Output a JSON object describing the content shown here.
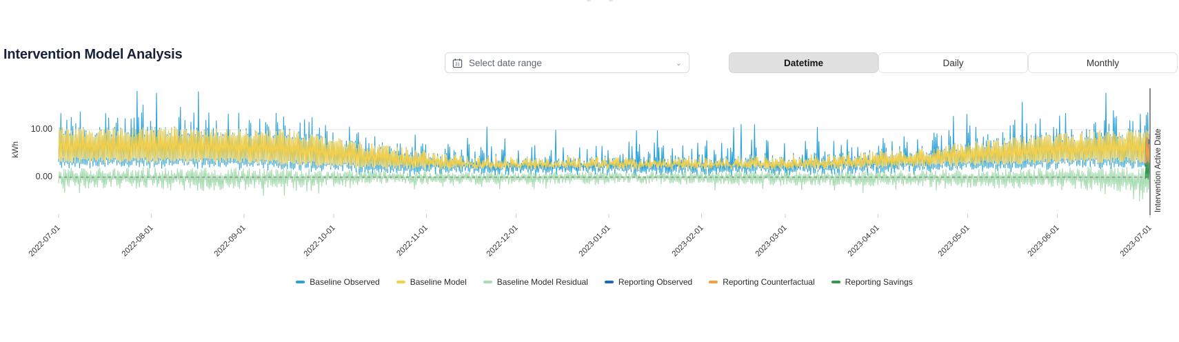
{
  "header": {
    "title": "Intervention Model Analysis"
  },
  "controls": {
    "date_range": {
      "placeholder": "Select date range",
      "icon": "calendar-icon",
      "chevron": "chevron-down-icon"
    },
    "granularity": {
      "options": [
        {
          "label": "Datetime",
          "active": true
        },
        {
          "label": "Daily",
          "active": false
        },
        {
          "label": "Monthly",
          "active": false
        }
      ]
    }
  },
  "chart_data": {
    "type": "line",
    "title": "Intervention Model Analysis",
    "xlabel": "",
    "ylabel": "kWh",
    "x_range": [
      "2022-07-01",
      "2023-07-01"
    ],
    "ylim": [
      -6.5,
      18.5
    ],
    "grid": "horizontal-gridline-at-10-only",
    "zero_line": "dashed",
    "legend_position": "bottom-center",
    "x_tick_labels": [
      "2022-07-01",
      "2022-08-01",
      "2022-09-01",
      "2022-10-01",
      "2022-11-01",
      "2022-12-01",
      "2023-01-01",
      "2023-02-01",
      "2023-03-01",
      "2023-04-01",
      "2023-05-01",
      "2023-06-01",
      "2023-07-01"
    ],
    "y_tick_labels": [
      "10.00",
      "0.00"
    ],
    "y_tick_values": [
      10,
      0
    ],
    "intervention_line": {
      "label": "Intervention Active Date",
      "x": "2023-07-01"
    },
    "series": [
      {
        "name": "Baseline Observed",
        "color": "#2aa1da",
        "period": "2022-07-01 to 2023-07-01",
        "range_kwh": [
          0.5,
          15.5
        ]
      },
      {
        "name": "Baseline Model",
        "color": "#f4d04a",
        "period": "2022-07-01 to 2023-07-01",
        "range_kwh": [
          1.5,
          10.5
        ]
      },
      {
        "name": "Baseline Model Residual",
        "color": "#a9dcb3",
        "period": "2022-07-01 to 2023-07-01",
        "range_kwh": [
          -5,
          2.4
        ]
      },
      {
        "name": "Reporting Observed",
        "color": "#1b6ac1",
        "period": "2023-07-01 onward (sliver at right edge)",
        "range_kwh": [
          1.8,
          8.5
        ]
      },
      {
        "name": "Reporting Counterfactual",
        "color": "#f0a13c",
        "period": "2023-07-01 onward (sliver at right edge)",
        "range_kwh": [
          2.2,
          9
        ]
      },
      {
        "name": "Reporting Savings",
        "color": "#2e9b4d",
        "period": "2023-07-01 onward (sliver at right edge)",
        "range_kwh": [
          -0.6,
          3.3
        ]
      }
    ],
    "monthly_envelope": [
      {
        "month": "2022-07",
        "model_min": 3.0,
        "model_max": 10.5,
        "observed_spike_max": 14.5,
        "residual_min": -4.0,
        "residual_max": 2.2
      },
      {
        "month": "2022-08",
        "model_min": 3.0,
        "model_max": 10.5,
        "observed_spike_max": 15.5,
        "residual_min": -5.0,
        "residual_max": 2.2
      },
      {
        "month": "2022-09",
        "model_min": 2.5,
        "model_max": 10.0,
        "observed_spike_max": 13.5,
        "residual_min": -4.0,
        "residual_max": 2.0
      },
      {
        "month": "2022-10",
        "model_min": 1.5,
        "model_max": 7.0,
        "observed_spike_max": 9.5,
        "residual_min": -2.5,
        "residual_max": 1.5
      },
      {
        "month": "2022-11",
        "model_min": 1.5,
        "model_max": 4.5,
        "observed_spike_max": 8.0,
        "residual_min": -2.5,
        "residual_max": 1.2
      },
      {
        "month": "2022-12",
        "model_min": 1.5,
        "model_max": 4.5,
        "observed_spike_max": 7.5,
        "residual_min": -2.5,
        "residual_max": 1.2
      },
      {
        "month": "2023-01",
        "model_min": 1.5,
        "model_max": 4.5,
        "observed_spike_max": 8.0,
        "residual_min": -2.5,
        "residual_max": 1.4
      },
      {
        "month": "2023-02",
        "model_min": 1.5,
        "model_max": 4.5,
        "observed_spike_max": 8.5,
        "residual_min": -3.0,
        "residual_max": 1.5
      },
      {
        "month": "2023-03",
        "model_min": 1.5,
        "model_max": 5.0,
        "observed_spike_max": 8.5,
        "residual_min": -3.0,
        "residual_max": 1.5
      },
      {
        "month": "2023-04",
        "model_min": 2.0,
        "model_max": 6.5,
        "observed_spike_max": 9.5,
        "residual_min": -3.5,
        "residual_max": 1.8
      },
      {
        "month": "2023-05",
        "model_min": 2.5,
        "model_max": 8.5,
        "observed_spike_max": 13.0,
        "residual_min": -4.0,
        "residual_max": 2.0
      },
      {
        "month": "2023-06",
        "model_min": 3.0,
        "model_max": 10.0,
        "observed_spike_max": 14.5,
        "residual_min": -5.0,
        "residual_max": 2.4
      }
    ]
  }
}
